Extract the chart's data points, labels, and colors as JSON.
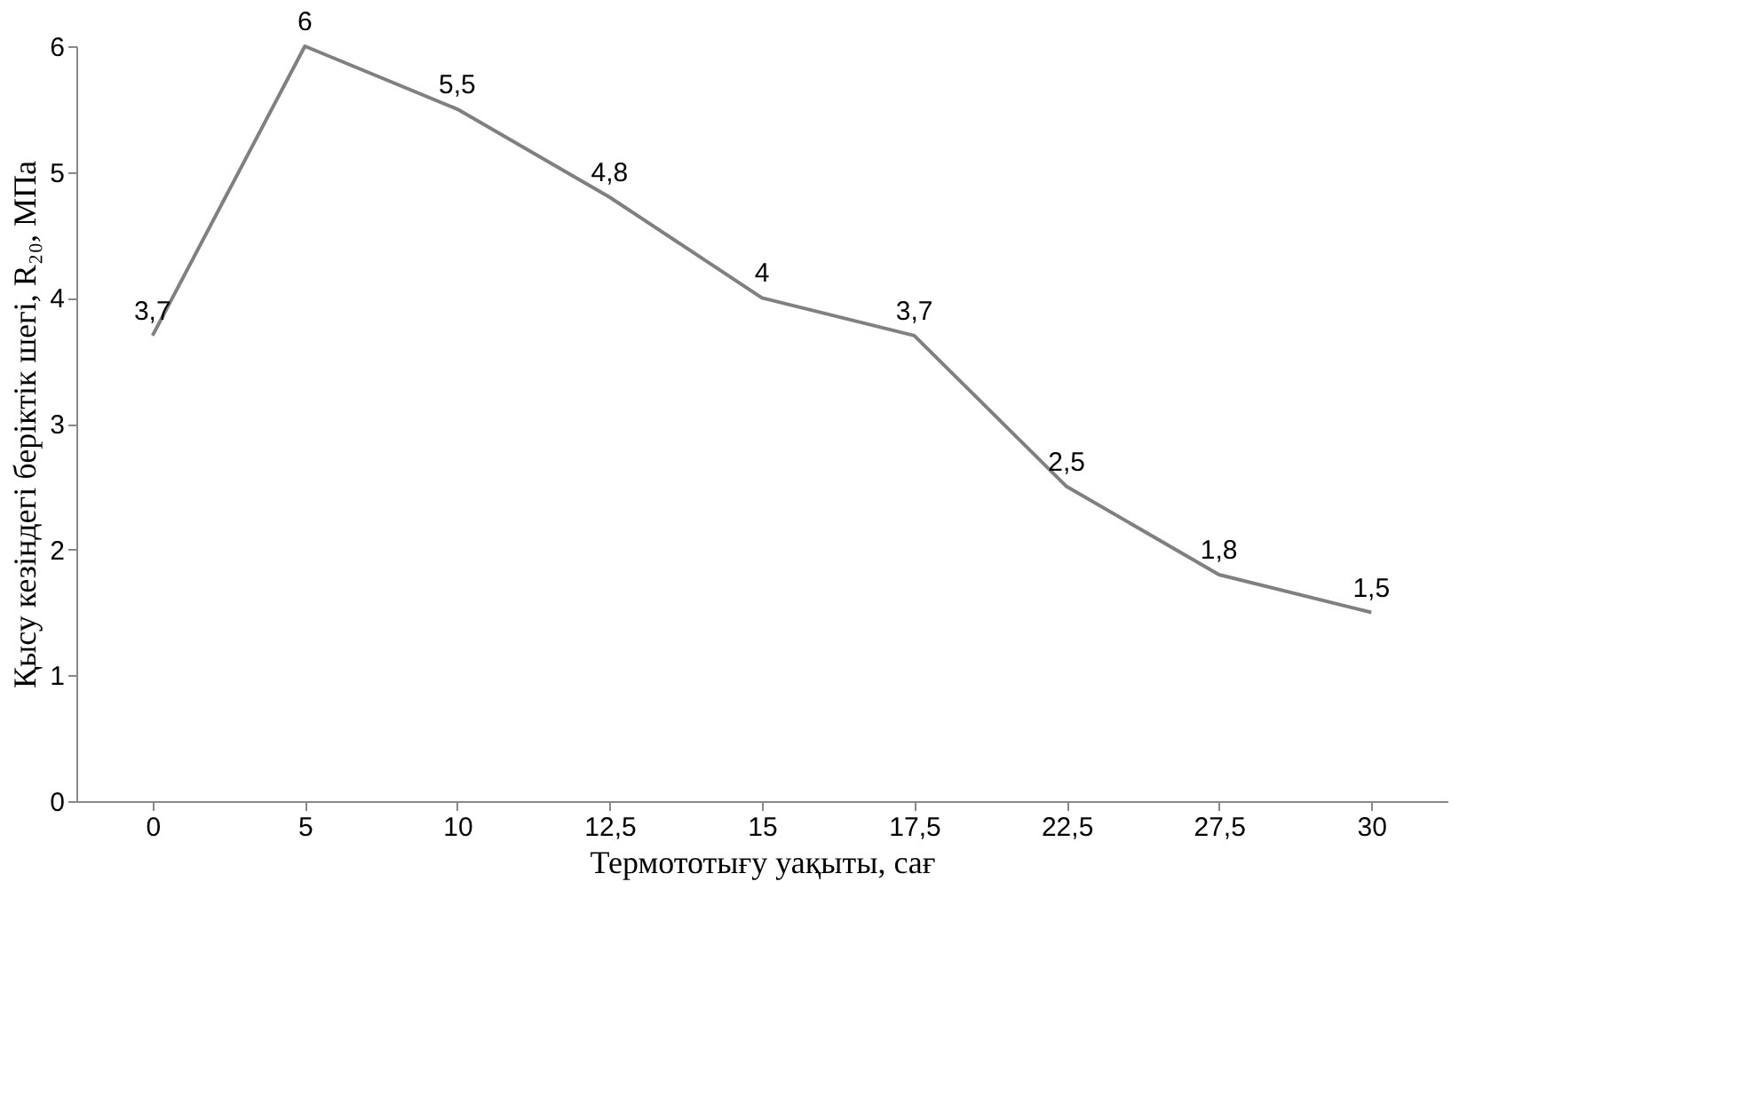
{
  "chart_data": {
    "type": "line",
    "xlabel": "Термототығу уақыты, сағ",
    "ylabel": "Қысу кезіндегі беріктік шегі, R₂₀, МПа",
    "categories": [
      "0",
      "5",
      "10",
      "12,5",
      "15",
      "17,5",
      "22,5",
      "27,5",
      "30"
    ],
    "series": [
      {
        "color": "#808080",
        "values": [
          3.7,
          6,
          5.5,
          4.8,
          4,
          3.7,
          2.5,
          1.8,
          1.5
        ],
        "value_labels": [
          "3,7",
          "6",
          "5,5",
          "4,8",
          "4",
          "3,7",
          "2,5",
          "1,8",
          "1,5"
        ]
      }
    ],
    "ylim": [
      0,
      6
    ],
    "yticks": [
      0,
      1,
      2,
      3,
      4,
      5,
      6
    ],
    "grid": false,
    "marker": "none",
    "line_style": "solid"
  }
}
